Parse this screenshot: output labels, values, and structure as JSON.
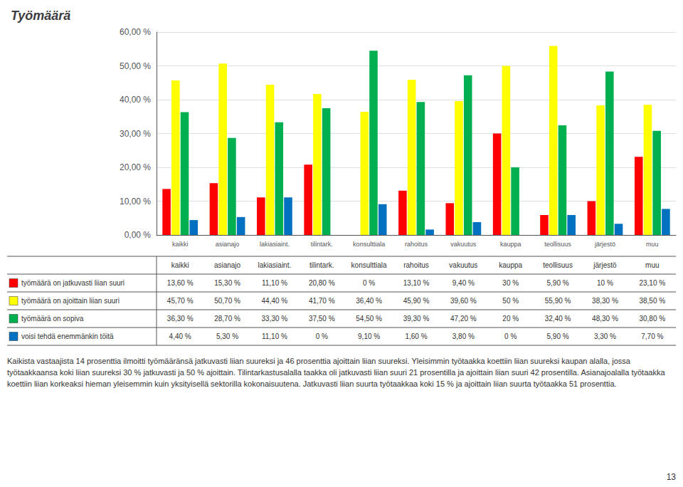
{
  "chart_data": {
    "type": "bar",
    "title": "Työmäärä",
    "categories": [
      "kaikki",
      "asianajo",
      "lakiasiaint.",
      "tilintark.",
      "konsulttiala",
      "rahoitus",
      "vakuutus",
      "kauppa",
      "teollisuus",
      "järjestö",
      "muu"
    ],
    "series": [
      {
        "name": "työmäärä on jatkuvasti liian suuri",
        "color": "#ff0000",
        "values": [
          13.6,
          15.3,
          11.1,
          20.8,
          0.0,
          13.1,
          9.4,
          30.0,
          5.9,
          10.0,
          23.1
        ],
        "value_labels": [
          "13,60 %",
          "15,30 %",
          "11,10 %",
          "20,80 %",
          "0 %",
          "13,10 %",
          "9,40 %",
          "30 %",
          "5,90 %",
          "10 %",
          "23,10 %"
        ]
      },
      {
        "name": "työmäärä on ajoittain liian suuri",
        "color": "#ffff00",
        "values": [
          45.7,
          50.7,
          44.4,
          41.7,
          36.4,
          45.9,
          39.6,
          50.0,
          55.9,
          38.3,
          38.5
        ],
        "value_labels": [
          "45,70 %",
          "50,70 %",
          "44,40 %",
          "41,70 %",
          "36,40 %",
          "45,90 %",
          "39,60 %",
          "50 %",
          "55,90 %",
          "38,30 %",
          "38,50 %"
        ]
      },
      {
        "name": "työmäärä on sopiva",
        "color": "#00b050",
        "values": [
          36.3,
          28.7,
          33.3,
          37.5,
          54.5,
          39.3,
          47.2,
          20.0,
          32.4,
          48.3,
          30.8
        ],
        "value_labels": [
          "36,30 %",
          "28,70 %",
          "33,30 %",
          "37,50 %",
          "54,50 %",
          "39,30 %",
          "47,20 %",
          "20 %",
          "32,40 %",
          "48,30 %",
          "30,80 %"
        ]
      },
      {
        "name": "voisi tehdä enemmänkin töitä",
        "color": "#0070c0",
        "values": [
          4.4,
          5.3,
          11.1,
          0.0,
          9.1,
          1.6,
          3.8,
          0.0,
          5.9,
          3.3,
          7.7
        ],
        "value_labels": [
          "4,40 %",
          "5,30 %",
          "11,10 %",
          "0 %",
          "9,10 %",
          "1,60 %",
          "3,80 %",
          "0 %",
          "5,90 %",
          "3,30 %",
          "7,70 %"
        ]
      }
    ],
    "ylim": [
      0,
      60
    ],
    "yticks": [
      {
        "value": 0,
        "label": "0,00 %"
      },
      {
        "value": 10,
        "label": "10,00 %"
      },
      {
        "value": 20,
        "label": "20,00 %"
      },
      {
        "value": 30,
        "label": "30,00 %"
      },
      {
        "value": 40,
        "label": "40,00 %"
      },
      {
        "value": 50,
        "label": "50,00 %"
      },
      {
        "value": 60,
        "label": "60,00 %"
      }
    ],
    "grid": true,
    "annotations": [
      "Kaikista vastaajista 14 prosenttia ilmoitti työmääränsä jatkuvasti liian suureksi ja 46 prosenttia ajoittain liian suureksi. Yleisimmin työtaakka koettiin liian suureksi kaupan alalla, jossa työtaakkaansa koki liian suureksi 30 % jatkuvasti ja 50 % ajoittain. Tilintarkastusalalla taakka oli jatkuvasti liian suuri 21 prosentilla ja ajoittain liian suuri 42 prosentilla. Asianajoalalla työtaakka koettiin liian korkeaksi hieman yleisemmin kuin yksityisellä sektorilla kokonaisuutena. Jatkuvasti liian suurta työtaakkaa koki 15 % ja ajoittain liian suurta työtaakka 51 prosenttia.",
      "13"
    ]
  }
}
